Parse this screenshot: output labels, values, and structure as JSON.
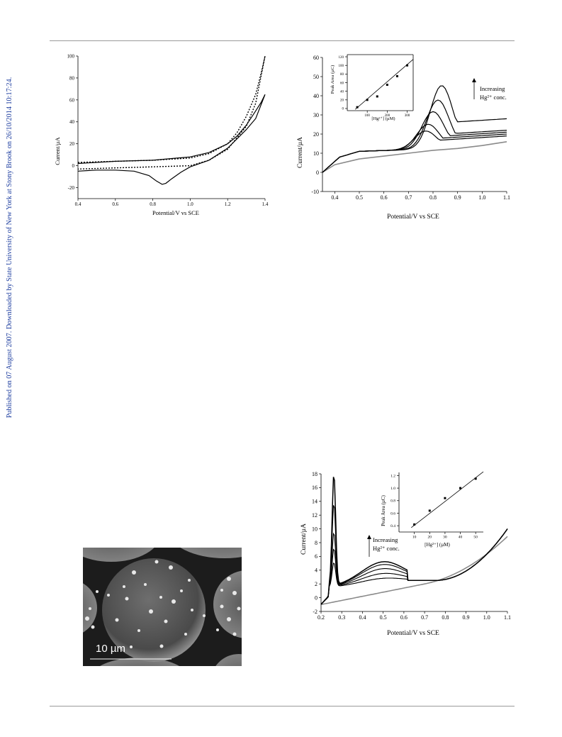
{
  "side_note": "Published on 07 August 2007. Downloaded by State University of New York at Stony Brook on 26/10/2014 10:17:24.",
  "sem_image": {
    "scale_label": "10 µm"
  },
  "chart_data": [
    {
      "type": "line",
      "xlabel": "Potential/V vs SCE",
      "ylabel": "Current/µA",
      "xlim": [
        0.4,
        1.4
      ],
      "ylim": [
        -30,
        100
      ],
      "xticks": [
        "0.4",
        "0.6",
        "0.8",
        "1.0",
        "1.2",
        "1.4"
      ],
      "yticks": [
        "100",
        "80",
        "60",
        "40",
        "20",
        "0",
        "-20"
      ],
      "series": [
        {
          "style": "solid",
          "x": [
            0.4,
            0.6,
            0.8,
            1.0,
            1.1,
            1.2,
            1.25,
            1.3,
            1.35,
            1.38,
            1.4,
            1.35,
            1.3,
            1.2,
            1.1,
            1.0,
            0.95,
            0.9,
            0.87,
            0.85,
            0.82,
            0.78,
            0.7,
            0.6,
            0.5,
            0.4
          ],
          "y": [
            2,
            4,
            5,
            8,
            12,
            20,
            27,
            37,
            50,
            58,
            65,
            43,
            33,
            16,
            5,
            -1,
            -6,
            -12,
            -16,
            -17,
            -14,
            -9,
            -5,
            -4,
            -4,
            -5
          ]
        },
        {
          "style": "dotted",
          "x": [
            0.4,
            0.6,
            0.8,
            1.0,
            1.1,
            1.2,
            1.25,
            1.3,
            1.35,
            1.38,
            1.4,
            1.35,
            1.3,
            1.2,
            1.1,
            1.0,
            0.8,
            0.6,
            0.4
          ],
          "y": [
            3,
            4,
            5,
            7,
            11,
            20,
            30,
            45,
            65,
            85,
            100,
            57,
            36,
            15,
            5,
            0,
            -1,
            -2,
            -3
          ]
        }
      ]
    },
    {
      "type": "line",
      "xlabel": "Potential/V vs SCE",
      "ylabel": "Current/µA",
      "xlim": [
        0.35,
        1.1
      ],
      "ylim": [
        -10,
        60
      ],
      "xticks": [
        "0.4",
        "0.5",
        "0.6",
        "0.7",
        "0.8",
        "0.9",
        "1.0",
        "1.1"
      ],
      "yticks": [
        "60",
        "50",
        "40",
        "30",
        "20",
        "10",
        "0",
        "-10"
      ],
      "annotation": [
        "Increasing",
        "Hg²⁺ conc."
      ],
      "series": [
        {
          "style": "grey-baseline",
          "x": [
            0.35,
            0.4,
            0.5,
            0.6,
            0.7,
            0.8,
            0.9,
            1.0,
            1.1
          ],
          "y": [
            0,
            4,
            7,
            8.5,
            10,
            11.5,
            12.5,
            14,
            16
          ]
        },
        {
          "peak": 22.5,
          "peak_x": 0.77,
          "end": 19
        },
        {
          "peak": 26,
          "peak_x": 0.78,
          "end": 20
        },
        {
          "peak": 32.5,
          "peak_x": 0.8,
          "end": 21
        },
        {
          "peak": 38.5,
          "peak_x": 0.82,
          "end": 22
        },
        {
          "peak": 46,
          "peak_x": 0.835,
          "end": 28
        }
      ],
      "inset": {
        "xlabel": "[Hg²⁺] (µM)",
        "ylabel": "Peak Area (µC)",
        "xlim": [
          0,
          330
        ],
        "ylim": [
          -5,
          125
        ],
        "xticks": [
          "100",
          "200",
          "300"
        ],
        "yticks": [
          "120",
          "100",
          "80",
          "60",
          "40",
          "20",
          "0"
        ],
        "points_x": [
          50,
          100,
          150,
          200,
          250,
          300
        ],
        "points_y": [
          3,
          20,
          28,
          55,
          75,
          100
        ]
      }
    },
    {
      "type": "line",
      "xlabel": "Potential/V vs SCE",
      "ylabel": "Current/µA",
      "xlim": [
        0.2,
        1.1
      ],
      "ylim": [
        -2,
        18
      ],
      "xticks": [
        "0.2",
        "0.3",
        "0.4",
        "0.5",
        "0.6",
        "0.7",
        "0.8",
        "0.9",
        "1.0",
        "1.1"
      ],
      "yticks": [
        "18",
        "16",
        "14",
        "12",
        "10",
        "8",
        "6",
        "4",
        "2",
        "0",
        "-2"
      ],
      "annotation": [
        "Increasing",
        "Hg²⁺ conc."
      ],
      "series": [
        {
          "style": "grey-baseline"
        },
        {
          "peak": 3.5,
          "hump": 1.8
        },
        {
          "peak": 5.5,
          "hump": 2.5
        },
        {
          "peak": 7.8,
          "hump": 3.2
        },
        {
          "peak": 12,
          "hump": 3.8
        },
        {
          "peak": 16.2,
          "hump": 4.2
        }
      ],
      "inset": {
        "xlabel": "[Hg²⁺] (µM)",
        "ylabel": "Peak Area (µC)",
        "xlim": [
          0,
          55
        ],
        "ylim": [
          0.3,
          1.25
        ],
        "xticks": [
          "10",
          "20",
          "30",
          "40",
          "50"
        ],
        "yticks": [
          "1.2",
          "1.0",
          "0.8",
          "0.6",
          "0.4"
        ],
        "points_x": [
          10,
          20,
          30,
          40,
          50
        ],
        "points_y": [
          0.42,
          0.64,
          0.84,
          1.0,
          1.15
        ]
      }
    }
  ]
}
